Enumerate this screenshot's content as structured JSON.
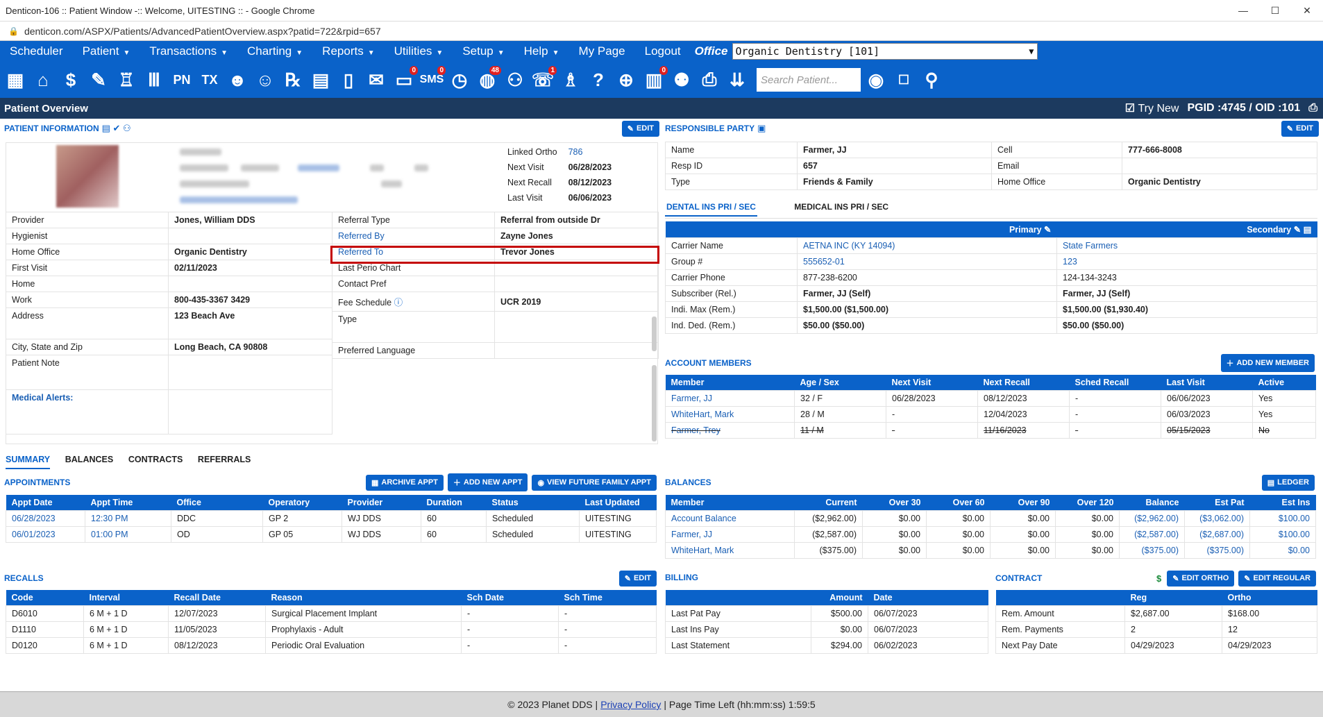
{
  "browser": {
    "title": "Denticon-106 :: Patient Window -:: Welcome, UITESTING :: - Google Chrome",
    "url": "denticon.com/ASPX/Patients/AdvancedPatientOverview.aspx?patid=722&rpid=657"
  },
  "menu": {
    "items": [
      "Scheduler",
      "Patient",
      "Transactions",
      "Charting",
      "Reports",
      "Utilities",
      "Setup",
      "Help",
      "My Page",
      "Logout"
    ],
    "office_label": "Office",
    "office_value": "Organic Dentistry [101]"
  },
  "toolbar": {
    "search_placeholder": "Search Patient...",
    "badges": {
      "sms": "0",
      "globe": "48",
      "person": "1",
      "clip": "0"
    }
  },
  "overview": {
    "title": "Patient Overview",
    "try_new": "Try New",
    "pgid": "PGID :4745  /  OID :101"
  },
  "patient_info": {
    "header": "PATIENT INFORMATION",
    "edit": "EDIT",
    "linked": [
      [
        "Linked Ortho",
        "786"
      ],
      [
        "Next Visit",
        "06/28/2023"
      ],
      [
        "Next Recall",
        "08/12/2023"
      ],
      [
        "Last Visit",
        "06/06/2023"
      ]
    ],
    "left_rows": [
      [
        "Provider",
        "Jones, William DDS"
      ],
      [
        "Hygienist",
        ""
      ],
      [
        "Home Office",
        "Organic Dentistry"
      ],
      [
        "First Visit",
        "02/11/2023"
      ],
      [
        "Home",
        ""
      ],
      [
        "Work",
        "800-435-3367 3429"
      ],
      [
        "Address",
        "123 Beach Ave"
      ],
      [
        "City, State and Zip",
        "Long Beach, CA 90808"
      ],
      [
        "Patient Note",
        ""
      ],
      [
        "Medical Alerts:",
        ""
      ]
    ],
    "right_rows": [
      [
        "Referral Type",
        "Referral from outside Dr"
      ],
      [
        "Referred By",
        "Zayne Jones"
      ],
      [
        "Referred To",
        "Trevor Jones"
      ],
      [
        "Last Perio Chart",
        ""
      ],
      [
        "Contact Pref",
        ""
      ],
      [
        "Fee Schedule",
        "UCR 2019"
      ],
      [
        "Type",
        ""
      ],
      [
        "Preferred Language",
        ""
      ]
    ]
  },
  "responsible": {
    "header": "RESPONSIBLE PARTY",
    "edit": "EDIT",
    "rows": [
      [
        "Name",
        "Farmer, JJ",
        "Cell",
        "777-666-8008"
      ],
      [
        "Resp ID",
        "657",
        "Email",
        ""
      ],
      [
        "Type",
        "Friends & Family",
        "Home Office",
        "Organic Dentistry"
      ]
    ]
  },
  "insurance": {
    "tab1": "DENTAL INS PRI / SEC",
    "tab2": "MEDICAL INS PRI / SEC",
    "primary": "Primary",
    "secondary": "Secondary",
    "rows": [
      [
        "Carrier Name",
        "AETNA INC (KY 14094)",
        "State Farmers"
      ],
      [
        "Group #",
        "555652-01",
        "123"
      ],
      [
        "Carrier Phone",
        "877-238-6200",
        "124-134-3243"
      ],
      [
        "Subscriber (Rel.)",
        "Farmer, JJ (Self)",
        "Farmer, JJ (Self)"
      ],
      [
        "Indi. Max (Rem.)",
        "$1,500.00 ($1,500.00)",
        "$1,500.00 ($1,930.40)"
      ],
      [
        "Ind. Ded. (Rem.)",
        "$50.00 ($50.00)",
        "$50.00 ($50.00)"
      ]
    ]
  },
  "account_members": {
    "header": "ACCOUNT MEMBERS",
    "add": "ADD NEW MEMBER",
    "columns": [
      "Member",
      "Age / Sex",
      "Next Visit",
      "Next Recall",
      "Sched Recall",
      "Last Visit",
      "Active"
    ],
    "rows": [
      [
        "Farmer, JJ",
        "32 / F",
        "06/28/2023",
        "08/12/2023",
        "-",
        "06/06/2023",
        "Yes"
      ],
      [
        "WhiteHart, Mark",
        "28 / M",
        "-",
        "12/04/2023",
        "-",
        "06/03/2023",
        "Yes"
      ],
      [
        "Farmer, Trey",
        "11 / M",
        "-",
        "11/16/2023",
        "-",
        "05/15/2023",
        "No"
      ]
    ]
  },
  "tabs": [
    "SUMMARY",
    "BALANCES",
    "CONTRACTS",
    "REFERRALS"
  ],
  "appointments": {
    "header": "APPOINTMENTS",
    "archive": "ARCHIVE APPT",
    "add": "ADD NEW APPT",
    "future": "VIEW FUTURE FAMILY APPT",
    "columns": [
      "Appt Date",
      "Appt Time",
      "Office",
      "Operatory",
      "Provider",
      "Duration",
      "Status",
      "Last Updated"
    ],
    "rows": [
      [
        "06/28/2023",
        "12:30 PM",
        "DDC",
        "GP 2",
        "WJ DDS",
        "60",
        "Scheduled",
        "UITESTING"
      ],
      [
        "06/01/2023",
        "01:00 PM",
        "OD",
        "GP 05",
        "WJ DDS",
        "60",
        "Scheduled",
        "UITESTING"
      ]
    ]
  },
  "balances": {
    "header": "BALANCES",
    "ledger": "LEDGER",
    "columns": [
      "Member",
      "Current",
      "Over 30",
      "Over 60",
      "Over 90",
      "Over 120",
      "Balance",
      "Est Pat",
      "Est Ins"
    ],
    "rows": [
      [
        "Account Balance",
        "($2,962.00)",
        "$0.00",
        "$0.00",
        "$0.00",
        "$0.00",
        "($2,962.00)",
        "($3,062.00)",
        "$100.00"
      ],
      [
        "Farmer, JJ",
        "($2,587.00)",
        "$0.00",
        "$0.00",
        "$0.00",
        "$0.00",
        "($2,587.00)",
        "($2,687.00)",
        "$100.00"
      ],
      [
        "WhiteHart, Mark",
        "($375.00)",
        "$0.00",
        "$0.00",
        "$0.00",
        "$0.00",
        "($375.00)",
        "($375.00)",
        "$0.00"
      ]
    ]
  },
  "recalls": {
    "header": "RECALLS",
    "edit": "EDIT",
    "columns": [
      "Code",
      "Interval",
      "Recall Date",
      "Reason",
      "Sch Date",
      "Sch Time"
    ],
    "rows": [
      [
        "D6010",
        "6 M + 1 D",
        "12/07/2023",
        "Surgical Placement Implant",
        "-",
        "-"
      ],
      [
        "D1110",
        "6 M + 1 D",
        "11/05/2023",
        "Prophylaxis - Adult",
        "-",
        "-"
      ],
      [
        "D0120",
        "6 M + 1 D",
        "08/12/2023",
        "Periodic Oral Evaluation",
        "-",
        "-"
      ]
    ]
  },
  "billing": {
    "header": "BILLING",
    "columns": [
      "",
      "Amount",
      "Date"
    ],
    "rows": [
      [
        "Last Pat Pay",
        "$500.00",
        "06/07/2023"
      ],
      [
        "Last Ins Pay",
        "$0.00",
        "06/07/2023"
      ],
      [
        "Last Statement",
        "$294.00",
        "06/02/2023"
      ]
    ]
  },
  "contract": {
    "header": "CONTRACT",
    "edit_ortho": "EDIT ORTHO",
    "edit_regular": "EDIT REGULAR",
    "columns": [
      "",
      "Reg",
      "Ortho"
    ],
    "rows": [
      [
        "Rem. Amount",
        "$2,687.00",
        "$168.00"
      ],
      [
        "Rem. Payments",
        "2",
        "12"
      ],
      [
        "Next Pay Date",
        "04/29/2023",
        "04/29/2023"
      ]
    ]
  },
  "footer": {
    "copyright": "© 2023 Planet DDS |",
    "privacy": "Privacy Policy",
    "page_time": "|  Page Time Left (hh:mm:ss) 1:59:5"
  }
}
